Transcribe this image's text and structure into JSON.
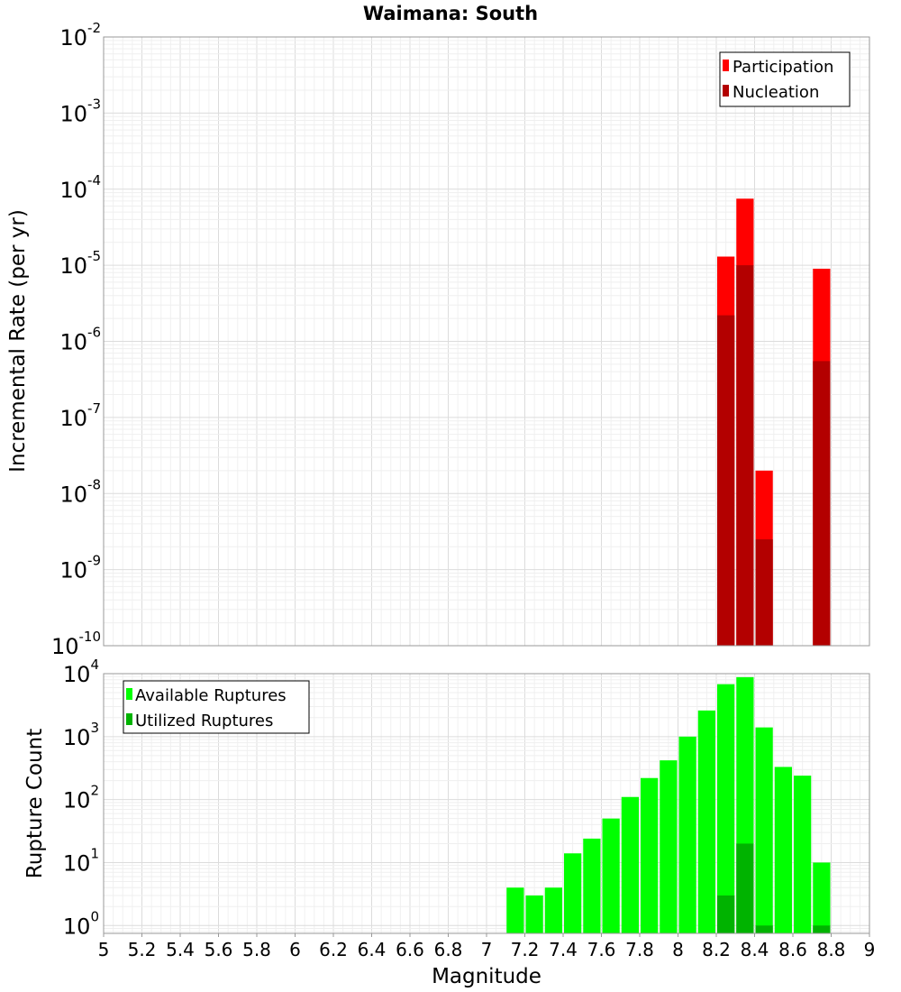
{
  "chart_data": [
    {
      "type": "bar",
      "title": "Waimana: South",
      "xlabel": "",
      "ylabel": "Incremental Rate (per yr)",
      "yscale": "log",
      "ylim": [
        1e-10,
        0.01
      ],
      "xlim": [
        5,
        9
      ],
      "grid": true,
      "legend_position": "top-right",
      "x": [
        8.25,
        8.35,
        8.45,
        8.75
      ],
      "series": [
        {
          "name": "Participation",
          "color": "#ff0000",
          "values": [
            1.3e-05,
            7.5e-05,
            2e-08,
            9e-06
          ]
        },
        {
          "name": "Nucleation",
          "color": "#b30000",
          "values": [
            2.2e-06,
            1e-05,
            2.5e-09,
            5.5e-07
          ]
        }
      ],
      "y_ticks": [
        {
          "base": "10",
          "exp": "-2"
        },
        {
          "base": "10",
          "exp": "-3"
        },
        {
          "base": "10",
          "exp": "-4"
        },
        {
          "base": "10",
          "exp": "-5"
        },
        {
          "base": "10",
          "exp": "-6"
        },
        {
          "base": "10",
          "exp": "-7"
        },
        {
          "base": "10",
          "exp": "-8"
        },
        {
          "base": "10",
          "exp": "-9"
        },
        {
          "base": "10",
          "exp": "-10"
        }
      ]
    },
    {
      "type": "bar",
      "xlabel": "Magnitude",
      "ylabel": "Rupture Count",
      "yscale": "log",
      "ylim": [
        0.75,
        10000
      ],
      "xlim": [
        5,
        9
      ],
      "grid": true,
      "legend_position": "top-left",
      "x": [
        7.15,
        7.25,
        7.35,
        7.45,
        7.55,
        7.65,
        7.75,
        7.85,
        7.95,
        8.05,
        8.15,
        8.25,
        8.35,
        8.45,
        8.55,
        8.65,
        8.75
      ],
      "series": [
        {
          "name": "Available Ruptures",
          "color": "#00ff00",
          "values": [
            4,
            3,
            4,
            14,
            24,
            50,
            110,
            220,
            420,
            1000,
            2600,
            6800,
            8800,
            1400,
            330,
            240,
            10
          ]
        },
        {
          "name": "Utilized Ruptures",
          "color": "#00b300",
          "values": [
            null,
            null,
            null,
            null,
            null,
            null,
            null,
            null,
            null,
            null,
            null,
            3,
            20,
            1,
            null,
            null,
            1
          ]
        }
      ],
      "y_ticks": [
        {
          "base": "10",
          "exp": "4"
        },
        {
          "base": "10",
          "exp": "3"
        },
        {
          "base": "10",
          "exp": "2"
        },
        {
          "base": "10",
          "exp": "1"
        },
        {
          "base": "10",
          "exp": "0"
        }
      ],
      "x_tick_labels": [
        "5",
        "5.2",
        "5.4",
        "5.6",
        "5.8",
        "6",
        "6.2",
        "6.4",
        "6.6",
        "6.8",
        "7",
        "7.2",
        "7.4",
        "7.6",
        "7.8",
        "8",
        "8.2",
        "8.4",
        "8.6",
        "8.8",
        "9"
      ]
    }
  ]
}
